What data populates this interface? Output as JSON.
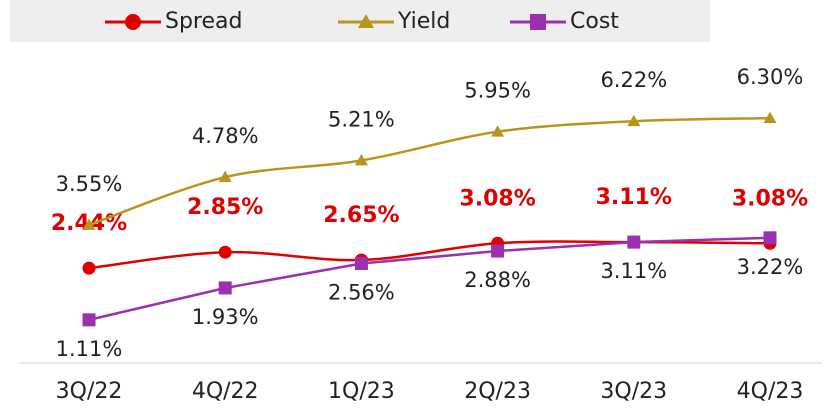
{
  "chart_data": {
    "type": "line",
    "categories": [
      "3Q/22",
      "4Q/22",
      "1Q/23",
      "2Q/23",
      "3Q/23",
      "4Q/23"
    ],
    "ylim": [
      0,
      8
    ],
    "series": [
      {
        "name": "Spread",
        "color": "#e00000",
        "marker": "circle",
        "smooth": true,
        "label_position": "above",
        "label_bold": true,
        "values": [
          2.44,
          2.85,
          2.65,
          3.08,
          3.11,
          3.08
        ],
        "value_labels": [
          "2.44%",
          "2.85%",
          "2.65%",
          "3.08%",
          "3.11%",
          "3.08%"
        ]
      },
      {
        "name": "Yield",
        "color": "#b8961e",
        "marker": "triangle",
        "smooth": true,
        "label_position": "above",
        "label_bold": false,
        "values": [
          3.55,
          4.78,
          5.21,
          5.95,
          6.22,
          6.3
        ],
        "value_labels": [
          "3.55%",
          "4.78%",
          "5.21%",
          "5.95%",
          "6.22%",
          "6.30%"
        ]
      },
      {
        "name": "Cost",
        "color": "#9b30b0",
        "marker": "square",
        "smooth": false,
        "label_position": "below",
        "label_bold": false,
        "values": [
          1.11,
          1.93,
          2.56,
          2.88,
          3.11,
          3.22
        ],
        "value_labels": [
          "1.11%",
          "1.93%",
          "2.56%",
          "2.88%",
          "3.11%",
          "3.22%"
        ]
      }
    ]
  }
}
